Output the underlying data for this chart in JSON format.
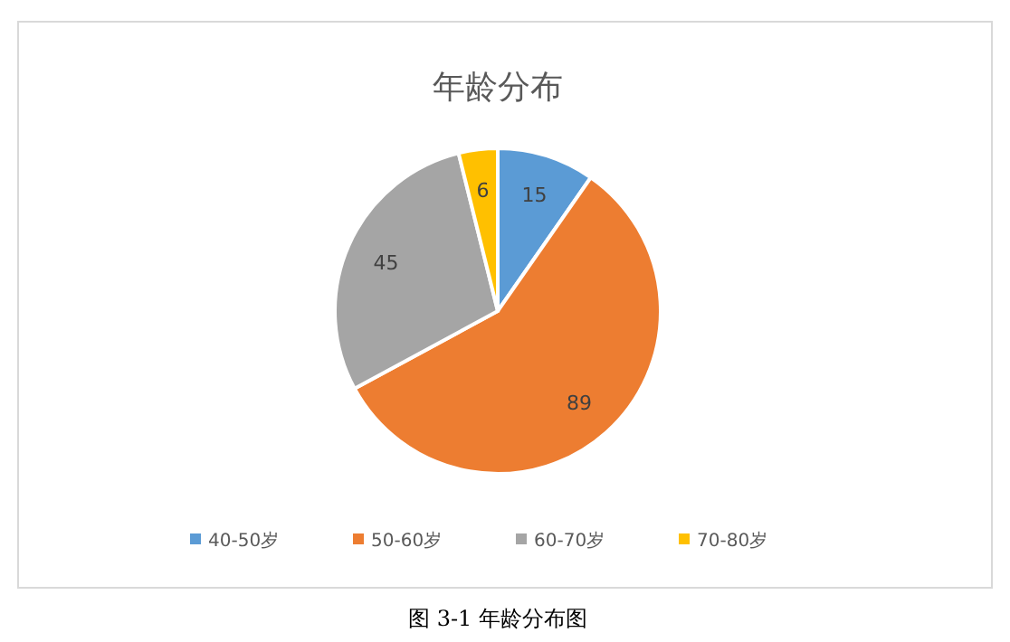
{
  "chart_data": {
    "type": "pie",
    "title": "年龄分布",
    "categories": [
      "40-50岁",
      "50-60岁",
      "60-70岁",
      "70-80岁"
    ],
    "values": [
      15,
      89,
      45,
      6
    ],
    "colors": [
      "#5b9bd5",
      "#ed7d31",
      "#a5a5a5",
      "#ffc000"
    ],
    "data_labels": true,
    "legend": "bottom",
    "annotations": [
      "图 3-1 年龄分布图"
    ]
  }
}
